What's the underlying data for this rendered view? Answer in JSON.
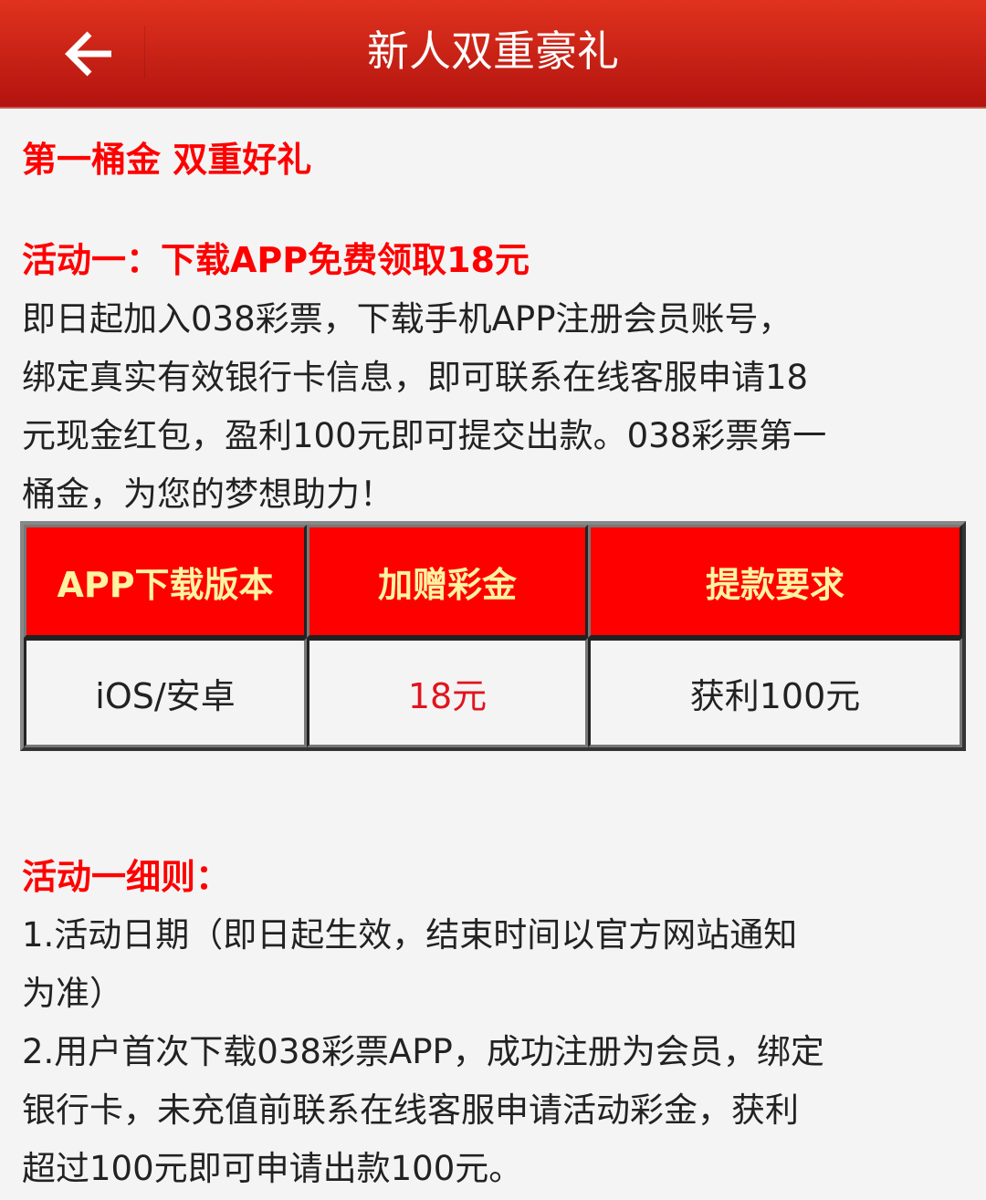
{
  "header": {
    "title": "新人双重豪礼",
    "back_icon": "arrow-left-icon"
  },
  "section_title": "第一桶金 双重好礼",
  "activity1": {
    "heading": "活动一：下载APP免费领取18元",
    "lines": [
      "即日起加入038彩票，下载手机APP注册会员账号，",
      "绑定真实有效银行卡信息，即可联系在线客服申请18",
      "元现金红包，盈利100元即可提交出款。038彩票第一",
      "桶金，为您的梦想助力！"
    ]
  },
  "table": {
    "headers": [
      "APP下载版本",
      "加赠彩金",
      "提款要求"
    ],
    "row": [
      "iOS/安卓",
      "18元",
      "获利100元"
    ]
  },
  "rules": {
    "heading": "活动一细则：",
    "lines": [
      "1.活动日期（即日起生效，结束时间以官方网站通知",
      "为准）",
      "2.用户首次下载038彩票APP，成功注册为会员，绑定",
      "银行卡，未充值前联系在线客服申请活动彩金，获利",
      "超过100元即可申请出款100元。"
    ]
  },
  "colors": {
    "header": "#d0261a",
    "accent": "#ff0000",
    "table_header_text": "#fff3a0"
  }
}
